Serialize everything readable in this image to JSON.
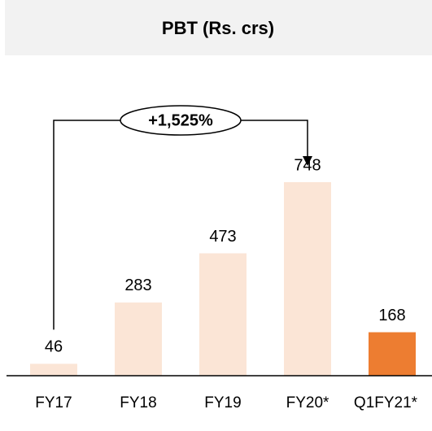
{
  "chart_data": {
    "type": "bar",
    "title": "PBT (Rs. crs)",
    "categories": [
      "FY17",
      "FY18",
      "FY19",
      "FY20*",
      "Q1FY21*"
    ],
    "values": [
      46,
      283,
      473,
      748,
      168
    ],
    "colors": [
      "#fbe5d6",
      "#fbe5d6",
      "#fbe5d6",
      "#fbe5d6",
      "#ed7d31"
    ],
    "annotation": "+1,525%"
  }
}
